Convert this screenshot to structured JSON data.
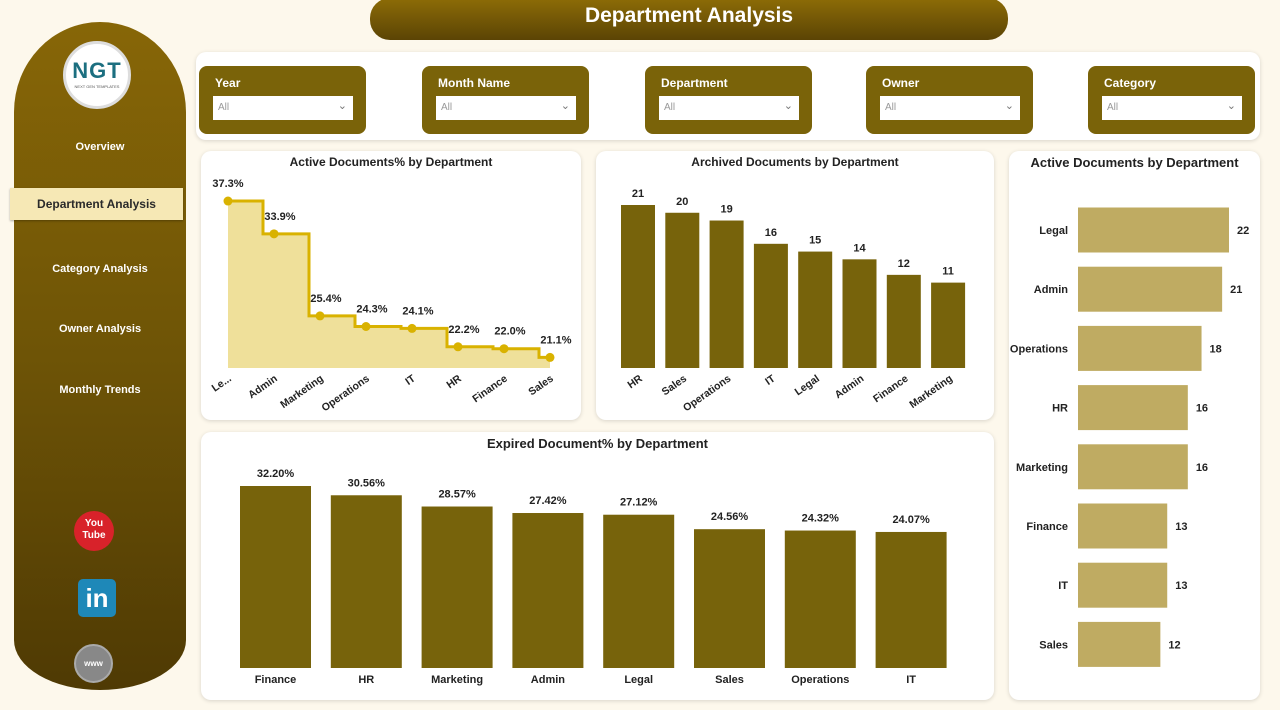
{
  "header": {
    "title": "Department Analysis"
  },
  "sidebar": {
    "logo": {
      "text": "NGT",
      "subtext": "NEXT GEN TEMPLATES"
    },
    "items": [
      {
        "label": "Overview"
      },
      {
        "label": "Department Analysis",
        "active": true
      },
      {
        "label": "Category Analysis"
      },
      {
        "label": "Owner Analysis"
      },
      {
        "label": "Monthly Trends"
      }
    ],
    "social": [
      "youtube-icon",
      "linkedin-icon",
      "website-icon"
    ]
  },
  "filters": [
    {
      "label": "Year",
      "value": "All"
    },
    {
      "label": "Month Name",
      "value": "All"
    },
    {
      "label": "Department",
      "value": "All"
    },
    {
      "label": "Owner",
      "value": "All"
    },
    {
      "label": "Category",
      "value": "All"
    }
  ],
  "colors": {
    "primary": "#77630b",
    "area_line": "#d9b200",
    "area_fill": "#efe09a",
    "hbar": "#bfab62"
  },
  "chart_data": [
    {
      "type": "area",
      "step": true,
      "title": "Active Documents% by Department",
      "categories": [
        "Le...",
        "Admin",
        "Marketing",
        "Operations",
        "IT",
        "HR",
        "Finance",
        "Sales"
      ],
      "values": [
        37.3,
        33.9,
        25.4,
        24.3,
        24.1,
        22.2,
        22.0,
        21.1
      ],
      "labels": [
        "37.3%",
        "33.9%",
        "25.4%",
        "24.3%",
        "24.1%",
        "22.2%",
        "22.0%",
        "21.1%"
      ],
      "ylim": [
        20,
        40
      ]
    },
    {
      "type": "bar",
      "title": "Archived Documents by Department",
      "categories": [
        "HR",
        "Sales",
        "Operations",
        "IT",
        "Legal",
        "Admin",
        "Finance",
        "Marketing"
      ],
      "values": [
        21,
        20,
        19,
        16,
        15,
        14,
        12,
        11
      ],
      "ylim": [
        0,
        21
      ]
    },
    {
      "type": "bar",
      "orientation": "horizontal",
      "title": "Active Documents by Department",
      "categories": [
        "Legal",
        "Admin",
        "Operations",
        "HR",
        "Marketing",
        "Finance",
        "IT",
        "Sales"
      ],
      "values": [
        22,
        21,
        18,
        16,
        16,
        13,
        13,
        12
      ],
      "xlim": [
        0,
        22
      ]
    },
    {
      "type": "bar",
      "title": "Expired Document% by Department",
      "categories": [
        "Finance",
        "HR",
        "Marketing",
        "Admin",
        "Legal",
        "Sales",
        "Operations",
        "IT"
      ],
      "values": [
        32.2,
        30.56,
        28.57,
        27.42,
        27.12,
        24.56,
        24.32,
        24.07
      ],
      "labels": [
        "32.20%",
        "30.56%",
        "28.57%",
        "27.42%",
        "27.12%",
        "24.56%",
        "24.32%",
        "24.07%"
      ],
      "ylim": [
        0,
        32.2
      ]
    }
  ]
}
